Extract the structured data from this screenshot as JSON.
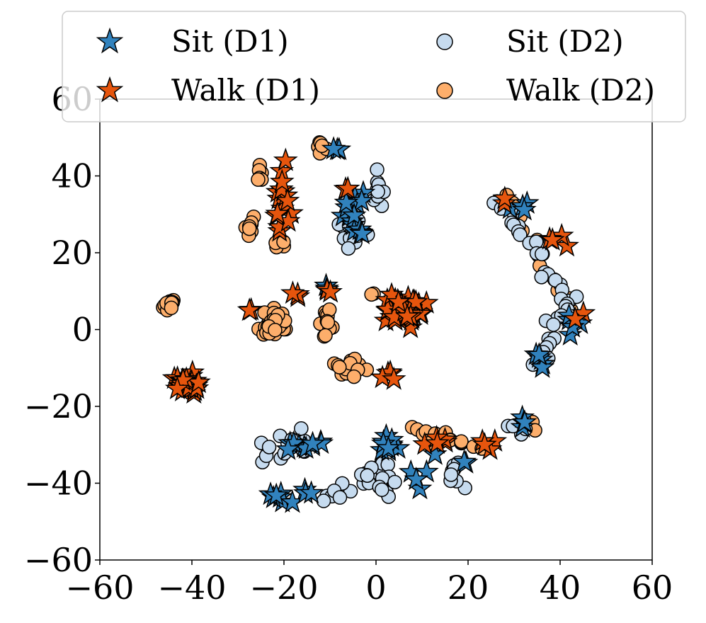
{
  "chart_data": {
    "type": "scatter",
    "title": "",
    "xlabel": "",
    "ylabel": "",
    "xlim": [
      -60,
      60
    ],
    "ylim": [
      -60,
      60
    ],
    "xticks": [
      -60,
      -40,
      -20,
      0,
      20,
      40,
      60
    ],
    "yticks": [
      -60,
      -40,
      -20,
      0,
      20,
      40,
      60
    ],
    "x_tick_labels": [
      "−60",
      "−40",
      "−20",
      "0",
      "20",
      "40",
      "60"
    ],
    "y_tick_labels": [
      "−60",
      "−40",
      "−20",
      "0",
      "20",
      "40",
      "60"
    ],
    "grid": false,
    "legend_position": "top",
    "legend": [
      {
        "label": "Sit (D1)",
        "series": "sit_d1"
      },
      {
        "label": "Walk (D1)",
        "series": "walk_d1"
      },
      {
        "label": "Sit (D2)",
        "series": "sit_d2"
      },
      {
        "label": "Walk (D2)",
        "series": "walk_d2"
      }
    ],
    "series": [
      {
        "id": "sit_d1",
        "name": "Sit (D1)",
        "marker": "star",
        "color": "#3182bd",
        "clusters": [
          {
            "cx": -5,
            "cy": 30,
            "sx": 1.8,
            "sy": 6,
            "n": 16
          },
          {
            "cx": -9,
            "cy": 47,
            "sx": 1,
            "sy": 1,
            "n": 3
          },
          {
            "cx": -11,
            "cy": 11,
            "sx": 0.7,
            "sy": 0.6,
            "n": 2
          },
          {
            "cx": 31,
            "cy": 32,
            "sx": 2,
            "sy": 1.5,
            "n": 4
          },
          {
            "cx": 43,
            "cy": 3,
            "sx": 1.2,
            "sy": 3,
            "n": 5
          },
          {
            "cx": 35,
            "cy": -7,
            "sx": 2,
            "sy": 2.5,
            "n": 6
          },
          {
            "cx": -15,
            "cy": -30,
            "sx": 4,
            "sy": 1.5,
            "n": 10
          },
          {
            "cx": -18,
            "cy": -43,
            "sx": 4.5,
            "sy": 1.2,
            "n": 10
          },
          {
            "cx": 2,
            "cy": -30,
            "sx": 4,
            "sy": 2,
            "n": 10
          },
          {
            "cx": 9,
            "cy": -37,
            "sx": 3,
            "sy": 4,
            "n": 5
          },
          {
            "cx": 32,
            "cy": -24,
            "sx": 2,
            "sy": 1.5,
            "n": 4
          },
          {
            "cx": 18,
            "cy": -36,
            "sx": 1.5,
            "sy": 1.5,
            "n": 2
          }
        ]
      },
      {
        "id": "walk_d1",
        "name": "Walk (D1)",
        "marker": "star",
        "color": "#e6550d",
        "clusters": [
          {
            "cx": 6,
            "cy": 5,
            "sx": 3.3,
            "sy": 3,
            "n": 55
          },
          {
            "cx": -41,
            "cy": -14,
            "sx": 2.3,
            "sy": 1.8,
            "n": 28
          },
          {
            "cx": -21,
            "cy": 34,
            "sx": 2.5,
            "sy": 7,
            "n": 16
          },
          {
            "cx": -6,
            "cy": 36,
            "sx": 1,
            "sy": 1,
            "n": 2
          },
          {
            "cx": -17,
            "cy": 9,
            "sx": 1,
            "sy": 1,
            "n": 3
          },
          {
            "cx": -10,
            "cy": 10,
            "sx": 1,
            "sy": 1,
            "n": 2
          },
          {
            "cx": -27,
            "cy": 5,
            "sx": 1,
            "sy": 1,
            "n": 2
          },
          {
            "cx": 2,
            "cy": -11,
            "sx": 2,
            "sy": 2,
            "n": 5
          },
          {
            "cx": 13,
            "cy": -29,
            "sx": 3,
            "sy": 1.2,
            "n": 5
          },
          {
            "cx": 26,
            "cy": -30,
            "sx": 3,
            "sy": 1.5,
            "n": 4
          },
          {
            "cx": 40,
            "cy": 22,
            "sx": 1.5,
            "sy": 3,
            "n": 4
          },
          {
            "cx": 28,
            "cy": 33,
            "sx": 1,
            "sy": 1,
            "n": 2
          },
          {
            "cx": 44,
            "cy": 4,
            "sx": 1,
            "sy": 2,
            "n": 2
          }
        ]
      },
      {
        "id": "sit_d2",
        "name": "Sit (D2)",
        "marker": "circle",
        "color": "#c6dbef",
        "arcs": [
          {
            "x0": 26,
            "y0": 34,
            "x1": 42,
            "y1": 8,
            "n": 22,
            "jitter": 1.5
          },
          {
            "x0": 42,
            "y0": 8,
            "x1": 35,
            "y1": -9,
            "n": 16,
            "jitter": 1.5
          }
        ],
        "clusters": [
          {
            "cx": -5,
            "cy": 28,
            "sx": 2.5,
            "sy": 6.5,
            "n": 20
          },
          {
            "cx": 0.8,
            "cy": 36,
            "sx": 1.2,
            "sy": 3.5,
            "n": 12
          },
          {
            "cx": -20,
            "cy": -32,
            "sx": 4.5,
            "sy": 4,
            "n": 16
          },
          {
            "cx": 0,
            "cy": -38,
            "sx": 4.5,
            "sy": 4,
            "n": 28
          },
          {
            "cx": -9,
            "cy": -43,
            "sx": 2.5,
            "sy": 2,
            "n": 5
          },
          {
            "cx": 16,
            "cy": -38,
            "sx": 2.5,
            "sy": 3.5,
            "n": 8
          },
          {
            "cx": 30,
            "cy": -25,
            "sx": 3,
            "sy": 2,
            "n": 6
          }
        ]
      },
      {
        "id": "walk_d2",
        "name": "Walk (D2)",
        "marker": "circle",
        "color": "#fdae6b",
        "arcs": [
          {
            "x0": 29,
            "y0": 35,
            "x1": 44,
            "y1": 2,
            "n": 12,
            "jitter": 1.2
          },
          {
            "x0": 8,
            "y0": -26,
            "x1": 22,
            "y1": -31,
            "n": 14,
            "jitter": 1.2
          }
        ],
        "clusters": [
          {
            "cx": -45,
            "cy": 7,
            "sx": 0.9,
            "sy": 1.5,
            "n": 12
          },
          {
            "cx": -22,
            "cy": 2,
            "sx": 2.5,
            "sy": 2.5,
            "n": 34
          },
          {
            "cx": -10,
            "cy": 2,
            "sx": 1.5,
            "sy": 4,
            "n": 12
          },
          {
            "cx": -6,
            "cy": -10,
            "sx": 4,
            "sy": 2,
            "n": 18
          },
          {
            "cx": -1,
            "cy": 9,
            "sx": 1,
            "sy": 0.8,
            "n": 2
          },
          {
            "cx": -25,
            "cy": 40,
            "sx": 1,
            "sy": 2,
            "n": 6
          },
          {
            "cx": -27,
            "cy": 27,
            "sx": 1.5,
            "sy": 2,
            "n": 8
          },
          {
            "cx": -12,
            "cy": 48,
            "sx": 1,
            "sy": 1.5,
            "n": 6
          },
          {
            "cx": -21,
            "cy": 22,
            "sx": 1.5,
            "sy": 1,
            "n": 4
          },
          {
            "cx": 34,
            "cy": -26,
            "sx": 1,
            "sy": 2,
            "n": 3
          },
          {
            "cx": 12,
            "cy": -30,
            "sx": 1,
            "sy": 1,
            "n": 2
          }
        ]
      }
    ]
  }
}
